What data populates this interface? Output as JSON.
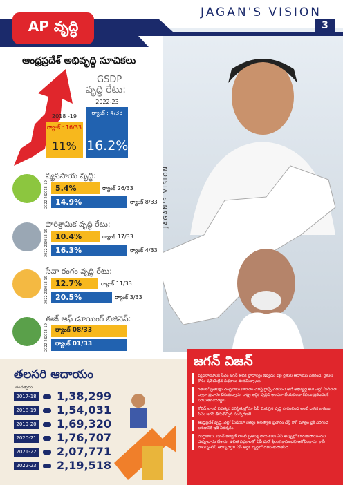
{
  "header": {
    "brand": "JAGAN'S VISION",
    "page": "3",
    "badge": "AP వృద్ధి",
    "title": "ఆంధ్రప్రదేశ్ అభివృద్ధి సూచికలు",
    "side_text": "JAGAN'S VISION"
  },
  "gsdp": {
    "title": "GSDP",
    "subtitle": "వృద్ధి రేటు:",
    "bars": [
      {
        "year": "2018 -19",
        "rank": "ర్యాంక్ : 16/33",
        "value": "11%"
      },
      {
        "year": "2022-23",
        "rank": "ర్యాంక్ : 4/33",
        "value": "16.2%"
      }
    ]
  },
  "sectors": [
    {
      "title": "వ్యవసాయ వృద్ధి:",
      "rows": [
        {
          "year": "2018-19",
          "value": "5.4%",
          "rank": "ర్యాంక్ 26/33"
        },
        {
          "year": "2022-23",
          "value": "14.9%",
          "rank": "ర్యాంక్ 8/33"
        }
      ]
    },
    {
      "title": "పారిశ్రామిక వృద్ధి రేటు:",
      "rows": [
        {
          "year": "2018-19",
          "value": "10.4%",
          "rank": "ర్యాంక్ 17/33"
        },
        {
          "year": "2022-23",
          "value": "16.3%",
          "rank": "ర్యాంక్ 4/33"
        }
      ]
    },
    {
      "title": "సేవా రంగం వృద్ధి రేటు:",
      "rows": [
        {
          "year": "2018-19",
          "value": "12.7%",
          "rank": "ర్యాంక్ 11/33"
        },
        {
          "year": "2022-23",
          "value": "20.5%",
          "rank": "ర్యాంక్ 3/33"
        }
      ]
    },
    {
      "title": "ఈజ్ ఆఫ్ డూయింగ్ బిజినెస్:",
      "rows": [
        {
          "year": "2018-19",
          "value": "ర్యాంక్ 08/33"
        },
        {
          "year": "2022-23",
          "value": "ర్యాంక్ 01/33"
        }
      ]
    }
  ],
  "per_capita": {
    "title": "తలసరి ఆదాయం",
    "year_header": "సంవత్సరం",
    "rows": [
      {
        "year": "2017-18",
        "value": "1,38,299"
      },
      {
        "year": "2018-19",
        "value": "1,54,031"
      },
      {
        "year": "2019-20",
        "value": "1,69,320"
      },
      {
        "year": "2020-21",
        "value": "1,76,707"
      },
      {
        "year": "2021-22",
        "value": "2,07,771"
      },
      {
        "year": "2022-23",
        "value": "2,19,518"
      }
    ]
  },
  "vision": {
    "title": "జగన్ విజన్",
    "bullets": [
      "వ్యవసాయానికి సీఎం జగన్ అధిక ప్రాధాన్యం ఇవ్వడం వల్ల రైతుల ఆదాయం పెరిగింది. రైతుల కోసం ప్రవేశపెట్టిన పథకాలు ఊతమిచ్చాయి.",
      "గతంలో ప్రతిపక్షం చంద్రబాబు హయాం చూస్తే గ్రాఫ్స్ చూపించి అదే అభివృద్ధి అని ఎల్లో మీడియా ద్వారా ప్రచారం చేసుకున్నారు. రాష్ట్ర ఆర్థిక వృద్ధిని అంచనా వేయకుండా కేవలం ప్రకటనలకే పరిమితమయ్యారు.",
      "కోవిడ్ లాంటి విపత్కర పరిస్థితుల్లోనూ ఏపీ మెరుగైన వృద్ధి సాధించింది అంటే దానికి కారణం సీఎం జగన్ తీసుకొచ్చిన సంస్కరణలే.",
      "ఆంధ్రప్రదేశ్ వృద్ధి, ఎల్లో మీడియా నిత్యం అసత్యాల ప్రచారం చేస్తే కాగ్ మాత్రం పైకి పెరిగింది అనడానికి ఇదే నిదర్శనం.",
      "చంద్రబాబు, పవన్ కళ్యాణ్ లాంటి ప్రతిపక్ష నాయకులు ఏపీ అప్పుల్లో కూరుకుపోయిందని దుష్ప్రచారం చేశారు. ఉచిత పథకాలతో ఏపీ మరో శ్రీలంక కానుందని ఆరోపించారు. కానీ వాటన్నింటినీ తిరస్కరిస్తూ ఏపీ ఆర్థిక వృద్ధిలో దూసుకుపోతోంది."
    ]
  }
}
